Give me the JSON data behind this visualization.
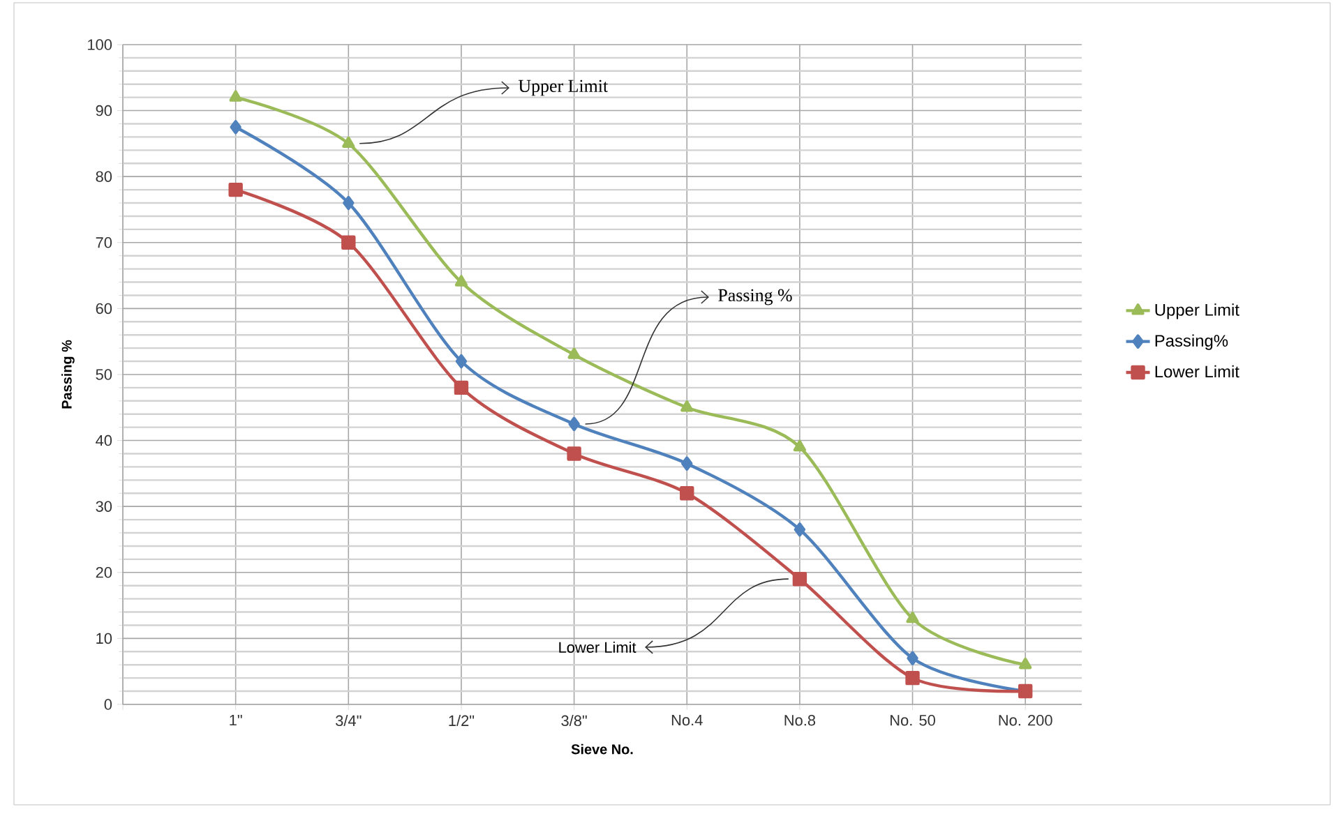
{
  "chart_data": {
    "type": "line",
    "xlabel": "Sieve No.",
    "ylabel": "Passing %",
    "categories": [
      null,
      "1\"",
      "3/4\"",
      "1/2\"",
      "3/8\"",
      "No.4",
      "No.8",
      "No. 50",
      "No. 200"
    ],
    "series": [
      {
        "name": "Upper Limit",
        "color": "#9bbb59",
        "marker": "triangle",
        "values": [
          null,
          92,
          85,
          64,
          53,
          45,
          39,
          13,
          6
        ]
      },
      {
        "name": "Passing%",
        "color": "#4f81bd",
        "marker": "diamond",
        "values": [
          null,
          87.5,
          76,
          52,
          42.5,
          36.5,
          26.5,
          7,
          2
        ]
      },
      {
        "name": "Lower Limit",
        "color": "#c0504d",
        "marker": "square",
        "values": [
          null,
          78,
          70,
          48,
          38,
          32,
          19,
          4,
          2
        ]
      }
    ],
    "ylim": [
      0,
      100
    ],
    "yticks": [
      0,
      10,
      20,
      30,
      40,
      50,
      60,
      70,
      80,
      90,
      100
    ],
    "grid": true,
    "legend": "right",
    "annotations": [
      {
        "text": "Upper Limit",
        "x": "3/4\"",
        "y": 85
      },
      {
        "text": "Passing %",
        "x": "3/8\"",
        "y": 42.5
      },
      {
        "text": "Lower Limit",
        "x": "No.8",
        "y": 19
      }
    ]
  }
}
